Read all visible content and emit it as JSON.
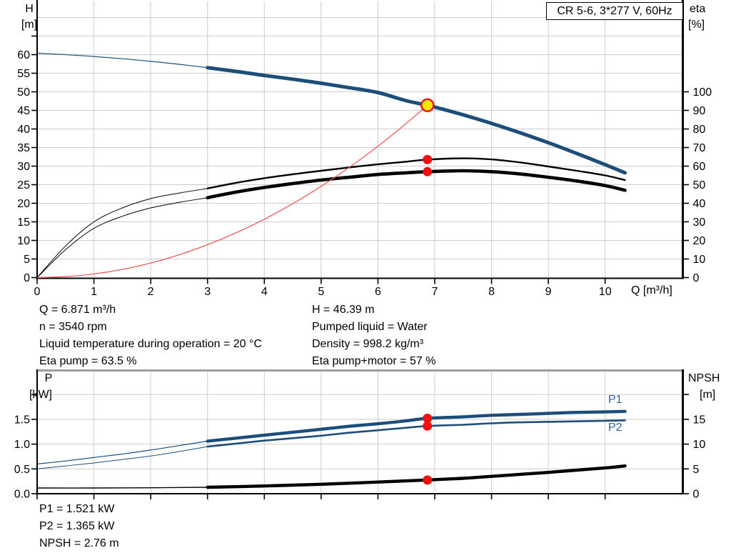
{
  "colors": {
    "curve_blue": "#1c4e7c",
    "black": "#000000",
    "red_curve": "#f15a5a",
    "dot_red": "#ee1111",
    "duty_fill": "#ffe400",
    "label_blue": "#2b62a5",
    "grid": "#cccccc",
    "axis": "#000000",
    "top_border_grey": "#9e9e9e"
  },
  "info_top": {
    "left": [
      "Q = 6.871 m³/h",
      "n = 3540 rpm",
      "Liquid temperature during operation = 20 °C",
      "Eta pump = 63.5 %"
    ],
    "right": [
      "H = 46.39 m",
      "Pumped liquid = Water",
      "Density = 998.2 kg/m³",
      "Eta pump+motor = 57 %"
    ]
  },
  "info_bottom": [
    "P1 = 1.521 kW",
    "P2 = 1.365 kW",
    "NPSH = 2.76 m"
  ],
  "chart_data": [
    {
      "id": "head-efficiency",
      "type": "line",
      "title": "CR 5-6, 3*277 V, 60Hz",
      "x_axis": {
        "label": "Q [m³/h]",
        "min": 0,
        "max": 11.37,
        "grid": [
          1,
          2,
          3,
          4,
          5,
          6,
          7,
          8,
          9,
          10
        ],
        "ticks": [
          {
            "v": 0,
            "t": "0"
          },
          {
            "v": 1,
            "t": "1"
          },
          {
            "v": 2,
            "t": "2"
          },
          {
            "v": 3,
            "t": "3"
          },
          {
            "v": 4,
            "t": "4"
          },
          {
            "v": 5,
            "t": "5"
          },
          {
            "v": 6,
            "t": "6"
          },
          {
            "v": 7,
            "t": "7"
          },
          {
            "v": 8,
            "t": "8"
          },
          {
            "v": 9,
            "t": "9"
          },
          {
            "v": 10,
            "t": "10"
          }
        ]
      },
      "y_left": {
        "label": "H [m]",
        "label_lines": [
          "H",
          "[m]"
        ],
        "min": 0,
        "max": 74.3,
        "grid": [
          5,
          10,
          15,
          20,
          25,
          30,
          35,
          40,
          45,
          50,
          55,
          60,
          65,
          70
        ],
        "ticks": [
          {
            "v": 0,
            "t": "0"
          },
          {
            "v": 5,
            "t": "5"
          },
          {
            "v": 10,
            "t": "10"
          },
          {
            "v": 15,
            "t": "15"
          },
          {
            "v": 20,
            "t": "20"
          },
          {
            "v": 25,
            "t": "25"
          },
          {
            "v": 30,
            "t": "30"
          },
          {
            "v": 35,
            "t": "35"
          },
          {
            "v": 40,
            "t": "40"
          },
          {
            "v": 45,
            "t": "45"
          },
          {
            "v": 50,
            "t": "50"
          },
          {
            "v": 55,
            "t": "55"
          },
          {
            "v": 60,
            "t": "60"
          },
          {
            "v": 65,
            "t": ""
          }
        ]
      },
      "y_right": {
        "label": "eta [%]",
        "label_lines": [
          "eta",
          "[%]"
        ],
        "min": 0,
        "max": 148.6,
        "ticks": [
          {
            "v": 0,
            "t": "0"
          },
          {
            "v": 10,
            "t": "10"
          },
          {
            "v": 20,
            "t": "20"
          },
          {
            "v": 30,
            "t": "30"
          },
          {
            "v": 40,
            "t": "40"
          },
          {
            "v": 50,
            "t": "50"
          },
          {
            "v": 60,
            "t": "60"
          },
          {
            "v": 70,
            "t": "70"
          },
          {
            "v": 80,
            "t": "80"
          },
          {
            "v": 90,
            "t": "90"
          },
          {
            "v": 100,
            "t": "100"
          }
        ]
      },
      "series": [
        {
          "name": "eta-pump-curve",
          "axis": "right",
          "color": "black",
          "w_thin": 1,
          "w_thick": 2.4,
          "thick_from": 3,
          "points": [
            [
              0,
              0
            ],
            [
              0.5,
              17
            ],
            [
              1,
              30
            ],
            [
              1.5,
              37.5
            ],
            [
              2,
              42.5
            ],
            [
              2.5,
              45.5
            ],
            [
              3,
              48
            ],
            [
              3.5,
              51
            ],
            [
              4,
              53.5
            ],
            [
              4.5,
              55.6
            ],
            [
              5,
              57.5
            ],
            [
              5.5,
              59.3
            ],
            [
              6,
              61
            ],
            [
              6.5,
              62.4
            ],
            [
              6.871,
              63.5
            ],
            [
              7.5,
              64.2
            ],
            [
              8,
              63.6
            ],
            [
              8.5,
              62
            ],
            [
              9,
              59.8
            ],
            [
              9.5,
              57.5
            ],
            [
              10,
              55
            ],
            [
              10.35,
              52.5
            ]
          ]
        },
        {
          "name": "eta-pump-motor-curve",
          "axis": "right",
          "color": "black",
          "w_thin": 1,
          "w_thick": 4.6,
          "thick_from": 3,
          "points": [
            [
              0,
              0
            ],
            [
              0.5,
              15
            ],
            [
              1,
              26.5
            ],
            [
              1.5,
              33
            ],
            [
              2,
              37.5
            ],
            [
              2.5,
              40.5
            ],
            [
              3,
              43
            ],
            [
              3.5,
              46
            ],
            [
              4,
              48.5
            ],
            [
              4.5,
              50.6
            ],
            [
              5,
              52.5
            ],
            [
              5.5,
              54
            ],
            [
              6,
              55.5
            ],
            [
              6.5,
              56.4
            ],
            [
              6.871,
              57
            ],
            [
              7.5,
              57.5
            ],
            [
              8,
              57
            ],
            [
              8.5,
              55.8
            ],
            [
              9,
              54
            ],
            [
              9.5,
              52
            ],
            [
              10,
              49.5
            ],
            [
              10.35,
              47
            ]
          ]
        },
        {
          "name": "system-curve",
          "axis": "left",
          "color": "red_curve",
          "w_thin": 1.3,
          "w_thick": 1.3,
          "thick_from": 999,
          "points": [
            [
              0,
              0
            ],
            [
              0.5,
              0.25
            ],
            [
              1,
              0.98
            ],
            [
              1.5,
              2.21
            ],
            [
              2,
              3.93
            ],
            [
              2.5,
              6.14
            ],
            [
              3,
              8.84
            ],
            [
              3.5,
              12.03
            ],
            [
              4,
              15.72
            ],
            [
              4.5,
              19.89
            ],
            [
              5,
              24.56
            ],
            [
              5.5,
              29.72
            ],
            [
              6,
              35.37
            ],
            [
              6.5,
              41.51
            ],
            [
              6.871,
              46.39
            ]
          ]
        },
        {
          "name": "pump-curve",
          "axis": "left",
          "color": "curve_blue",
          "w_thin": 1.2,
          "w_thick": 5,
          "thick_from": 3,
          "points": [
            [
              0,
              60.4
            ],
            [
              0.5,
              60.0
            ],
            [
              1,
              59.5
            ],
            [
              1.5,
              58.9
            ],
            [
              2,
              58.2
            ],
            [
              2.5,
              57.4
            ],
            [
              3,
              56.5
            ],
            [
              3.5,
              55.5
            ],
            [
              4,
              54.4
            ],
            [
              4.5,
              53.4
            ],
            [
              5,
              52.3
            ],
            [
              5.5,
              51.1
            ],
            [
              6,
              49.8
            ],
            [
              6.5,
              47.6
            ],
            [
              6.871,
              46.39
            ],
            [
              7,
              45.9
            ],
            [
              7.5,
              43.8
            ],
            [
              8,
              41.5
            ],
            [
              8.5,
              39.0
            ],
            [
              9,
              36.3
            ],
            [
              9.5,
              33.4
            ],
            [
              10,
              30.4
            ],
            [
              10.35,
              28.2
            ]
          ]
        }
      ],
      "markers": {
        "duty": {
          "q": 6.871,
          "v": 46.39,
          "axis": "left"
        },
        "dots": [
          {
            "q": 6.871,
            "v": 63.5,
            "axis": "right"
          },
          {
            "q": 6.871,
            "v": 57,
            "axis": "right"
          }
        ]
      }
    },
    {
      "id": "power-npsh",
      "type": "line",
      "title": "",
      "x_axis": {
        "label": "",
        "min": 0,
        "max": 11.37,
        "grid": [
          1,
          2,
          3,
          4,
          5,
          6,
          7,
          8,
          9,
          10
        ],
        "ticks": [
          {
            "v": 0,
            "t": ""
          },
          {
            "v": 1,
            "t": ""
          },
          {
            "v": 2,
            "t": ""
          },
          {
            "v": 3,
            "t": ""
          },
          {
            "v": 4,
            "t": ""
          },
          {
            "v": 5,
            "t": ""
          },
          {
            "v": 6,
            "t": ""
          },
          {
            "v": 7,
            "t": ""
          },
          {
            "v": 8,
            "t": ""
          },
          {
            "v": 9,
            "t": ""
          },
          {
            "v": 10,
            "t": ""
          }
        ]
      },
      "y_left": {
        "label": "P [kW]",
        "label_lines": [
          "P",
          "[kW]"
        ],
        "min": 0,
        "max": 2.49,
        "grid": [
          0.5,
          1,
          1.5,
          2
        ],
        "ticks": [
          {
            "v": 0,
            "t": "0.0"
          },
          {
            "v": 0.5,
            "t": "0.5"
          },
          {
            "v": 1,
            "t": "1.0"
          },
          {
            "v": 1.5,
            "t": "1.5"
          },
          {
            "v": 2,
            "t": ""
          }
        ]
      },
      "y_right": {
        "label": "NPSH [m]",
        "label_lines": [
          "NPSH",
          "[m]"
        ],
        "min": 0,
        "max": 24.9,
        "ticks": [
          {
            "v": 0,
            "t": "0"
          },
          {
            "v": 5,
            "t": "5"
          },
          {
            "v": 10,
            "t": "10"
          },
          {
            "v": 15,
            "t": "15"
          },
          {
            "v": 20,
            "t": ""
          }
        ]
      },
      "series": [
        {
          "name": "npsh-curve",
          "axis": "right",
          "color": "black",
          "w_thin": 1.4,
          "w_thick": 4.4,
          "thick_from": 3,
          "points": [
            [
              0,
              1.15
            ],
            [
              1,
              1.15
            ],
            [
              2,
              1.2
            ],
            [
              3,
              1.3
            ],
            [
              4,
              1.55
            ],
            [
              5,
              1.9
            ],
            [
              6,
              2.35
            ],
            [
              6.871,
              2.76
            ],
            [
              7.5,
              3.1
            ],
            [
              8,
              3.5
            ],
            [
              8.5,
              3.9
            ],
            [
              9,
              4.3
            ],
            [
              9.5,
              4.75
            ],
            [
              10,
              5.2
            ],
            [
              10.35,
              5.6
            ]
          ]
        },
        {
          "name": "p2-curve",
          "label": "P2",
          "axis": "left",
          "color": "curve_blue",
          "w_thin": 1,
          "w_thick": 2.6,
          "thick_from": 3,
          "points": [
            [
              0,
              0.5
            ],
            [
              0.5,
              0.56
            ],
            [
              1,
              0.62
            ],
            [
              1.5,
              0.69
            ],
            [
              2,
              0.76
            ],
            [
              2.5,
              0.85
            ],
            [
              3,
              0.95
            ],
            [
              3.5,
              1.01
            ],
            [
              4,
              1.07
            ],
            [
              4.5,
              1.12
            ],
            [
              5,
              1.17
            ],
            [
              5.5,
              1.23
            ],
            [
              6,
              1.28
            ],
            [
              6.5,
              1.33
            ],
            [
              6.871,
              1.365
            ],
            [
              7.5,
              1.39
            ],
            [
              8,
              1.42
            ],
            [
              8.5,
              1.44
            ],
            [
              9,
              1.45
            ],
            [
              9.5,
              1.46
            ],
            [
              10,
              1.47
            ],
            [
              10.35,
              1.48
            ]
          ]
        },
        {
          "name": "p1-curve",
          "label": "P1",
          "axis": "left",
          "color": "curve_blue",
          "w_thin": 1.2,
          "w_thick": 4.4,
          "thick_from": 3,
          "points": [
            [
              0,
              0.6
            ],
            [
              0.5,
              0.66
            ],
            [
              1,
              0.73
            ],
            [
              1.5,
              0.8
            ],
            [
              2,
              0.88
            ],
            [
              2.5,
              0.97
            ],
            [
              3,
              1.06
            ],
            [
              3.5,
              1.12
            ],
            [
              4,
              1.18
            ],
            [
              4.5,
              1.24
            ],
            [
              5,
              1.3
            ],
            [
              5.5,
              1.36
            ],
            [
              6,
              1.41
            ],
            [
              6.5,
              1.47
            ],
            [
              6.871,
              1.521
            ],
            [
              7.5,
              1.55
            ],
            [
              8,
              1.58
            ],
            [
              8.5,
              1.6
            ],
            [
              9,
              1.62
            ],
            [
              9.5,
              1.64
            ],
            [
              10,
              1.65
            ],
            [
              10.35,
              1.66
            ]
          ]
        }
      ],
      "markers": {
        "duty": null,
        "dots": [
          {
            "q": 6.871,
            "v": 1.521,
            "axis": "left"
          },
          {
            "q": 6.871,
            "v": 1.365,
            "axis": "left"
          },
          {
            "q": 6.871,
            "v": 2.76,
            "axis": "right"
          }
        ]
      }
    }
  ]
}
